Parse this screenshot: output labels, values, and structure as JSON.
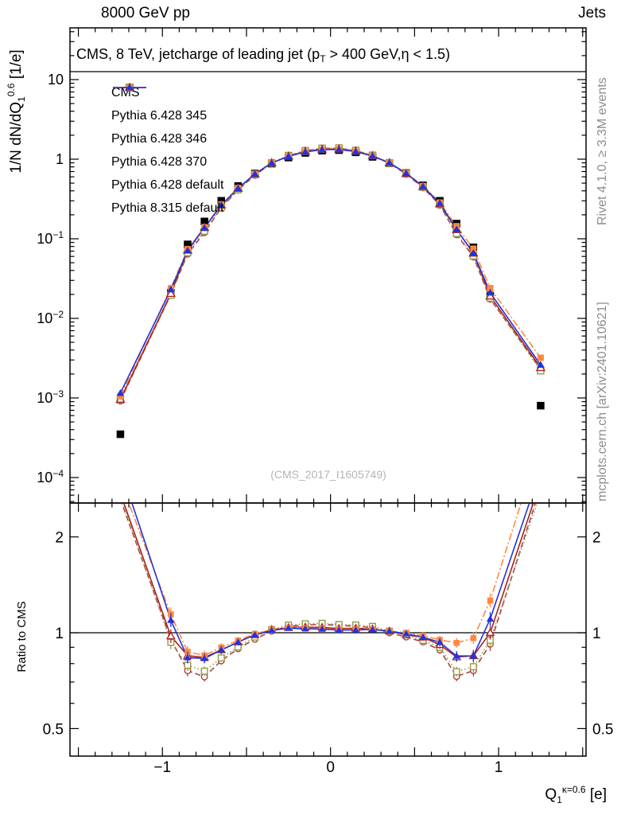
{
  "header": {
    "left": "8000 GeV pp",
    "right": "Jets"
  },
  "plot_title": {
    "pre": "CMS, 8 TeV, jetcharge of leading jet (p",
    "sub": "T",
    "post": " > 400 GeV,η < 1.5)"
  },
  "watermark": "(CMS_2017_I1605749)",
  "side_notes": {
    "rivet": "Rivet 4.1.0, ≥ 3.3M events",
    "mcplots": "mcplots.cern.ch [arXiv:2401.10621]"
  },
  "axis_labels": {
    "y_main": {
      "pre": "1/N dN/dQ",
      "sub": "1",
      "sup": "0.6",
      "post": " [1/e]"
    },
    "y_ratio": "Ratio to CMS",
    "x": {
      "pre": "Q",
      "sub": "1",
      "sup": "κ=0.6",
      "post": " [e]"
    }
  },
  "chart_data": {
    "type": "line",
    "title": "CMS, 8 TeV, jetcharge of leading jet (pT > 400 GeV, η < 1.5)",
    "xlabel": "Q1 κ=0.6 [e]",
    "ylabel": "1/N dN/dQ1^0.6 [1/e]",
    "ratio_label": "Ratio to CMS",
    "legend_position": "top-left",
    "x_axis": {
      "min": -1.55,
      "max": 1.52,
      "labeled_ticks": [
        -1,
        0,
        1
      ],
      "minor_step": 0.1
    },
    "y_axis_main": {
      "scale": "log",
      "labeled_decades": [
        1,
        0,
        -1,
        -2,
        -3,
        -4
      ]
    },
    "y_axis_ratio": {
      "scale": "log",
      "labeled_ticks": [
        2,
        1,
        0.5
      ],
      "minor_ticks": [
        0.6,
        0.7,
        0.8,
        0.9
      ],
      "reference_line": 1
    },
    "x": [
      -1.25,
      -0.95,
      -0.85,
      -0.75,
      -0.65,
      -0.55,
      -0.45,
      -0.35,
      -0.25,
      -0.15,
      -0.05,
      0.05,
      0.15,
      0.25,
      0.35,
      0.45,
      0.55,
      0.65,
      0.75,
      0.85,
      0.95,
      1.25
    ],
    "series": [
      {
        "name": "CMS",
        "color": "#000000",
        "line": "none",
        "marker": "square-filled",
        "values": [
          0.00035,
          0.021,
          0.085,
          0.165,
          0.3,
          0.46,
          0.66,
          0.88,
          1.05,
          1.2,
          1.28,
          1.3,
          1.22,
          1.07,
          0.89,
          0.67,
          0.47,
          0.3,
          0.155,
          0.078,
          0.019,
          0.0008
        ]
      },
      {
        "name": "Pythia 6.428 345",
        "color": "#a64545",
        "line": "dashed",
        "marker": "circle-open",
        "values": [
          0.00092,
          0.02,
          0.0646,
          0.12,
          0.245,
          0.41,
          0.63,
          0.89,
          1.1,
          1.27,
          1.36,
          1.37,
          1.28,
          1.11,
          0.89,
          0.65,
          0.44,
          0.265,
          0.113,
          0.0593,
          0.0175,
          0.0023
        ]
      },
      {
        "name": "Pythia 6.428 346",
        "color": "#999944",
        "line": "dotted",
        "marker": "square-open",
        "values": [
          0.00094,
          0.0196,
          0.0672,
          0.125,
          0.25,
          0.415,
          0.64,
          0.9,
          1.11,
          1.28,
          1.37,
          1.38,
          1.29,
          1.12,
          0.9,
          0.66,
          0.445,
          0.27,
          0.117,
          0.061,
          0.018,
          0.0022
        ]
      },
      {
        "name": "Pythia 6.428 370",
        "color": "#aa2222",
        "line": "solid",
        "marker": "triangle-open",
        "values": [
          0.00096,
          0.0205,
          0.072,
          0.138,
          0.265,
          0.43,
          0.65,
          0.9,
          1.09,
          1.25,
          1.33,
          1.34,
          1.26,
          1.1,
          0.9,
          0.66,
          0.455,
          0.275,
          0.13,
          0.066,
          0.019,
          0.0024
        ]
      },
      {
        "name": "Pythia 6.428 default",
        "color": "#ff8840",
        "line": "dashdot",
        "marker": "square-filled",
        "values": [
          0.00105,
          0.024,
          0.074,
          0.14,
          0.27,
          0.435,
          0.655,
          0.9,
          1.09,
          1.24,
          1.32,
          1.33,
          1.25,
          1.1,
          0.9,
          0.67,
          0.46,
          0.285,
          0.144,
          0.075,
          0.024,
          0.0032
        ]
      },
      {
        "name": "Pythia 8.315 default",
        "color": "#2233dd",
        "line": "solid",
        "marker": "triangle-filled",
        "values": [
          0.00115,
          0.023,
          0.071,
          0.137,
          0.265,
          0.43,
          0.65,
          0.895,
          1.085,
          1.235,
          1.315,
          1.325,
          1.245,
          1.095,
          0.9,
          0.665,
          0.455,
          0.28,
          0.131,
          0.066,
          0.021,
          0.0026
        ]
      }
    ],
    "ratio": {
      "definition": "MC divided by CMS",
      "baseline_series": "CMS"
    }
  }
}
